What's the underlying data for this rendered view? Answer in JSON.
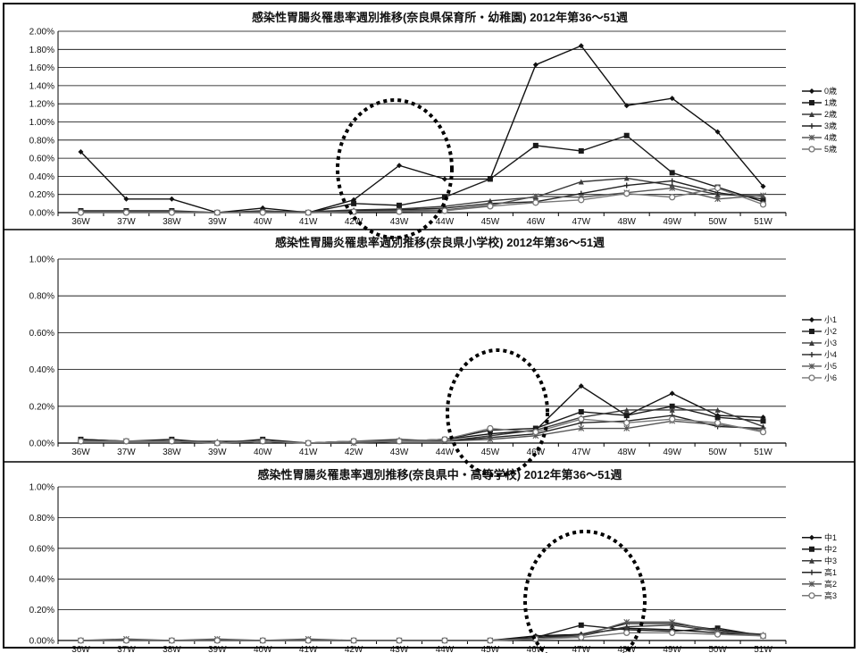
{
  "chart_data": [
    {
      "type": "line",
      "title": "感染性胃腸炎罹患率週別推移(奈良県保育所・幼稚園) 2012年第36～51週",
      "categories": [
        "36W",
        "37W",
        "38W",
        "39W",
        "40W",
        "41W",
        "42W",
        "43W",
        "44W",
        "45W",
        "46W",
        "47W",
        "48W",
        "49W",
        "50W",
        "51W"
      ],
      "yticks": [
        "0.00%",
        "0.20%",
        "0.40%",
        "0.60%",
        "0.80%",
        "1.00%",
        "1.20%",
        "1.40%",
        "1.60%",
        "1.80%",
        "2.00%"
      ],
      "ylim": [
        0,
        2.0
      ],
      "grid": true,
      "legend_position": "right",
      "series": [
        {
          "name": "0歳",
          "values": [
            0.67,
            0.15,
            0.15,
            0.0,
            0.05,
            0.0,
            0.14,
            0.52,
            0.37,
            0.37,
            1.63,
            1.84,
            1.18,
            1.26,
            0.89,
            0.29
          ]
        },
        {
          "name": "1歳",
          "values": [
            0.02,
            0.02,
            0.02,
            0.0,
            0.02,
            0.0,
            0.1,
            0.08,
            0.17,
            0.37,
            0.74,
            0.68,
            0.85,
            0.44,
            0.28,
            0.12
          ]
        },
        {
          "name": "2歳",
          "values": [
            0.01,
            0.01,
            0.01,
            0.0,
            0.01,
            0.01,
            0.03,
            0.04,
            0.07,
            0.13,
            0.17,
            0.34,
            0.38,
            0.3,
            0.2,
            0.18
          ]
        },
        {
          "name": "3歳",
          "values": [
            0.01,
            0.01,
            0.01,
            0.0,
            0.01,
            0.0,
            0.02,
            0.03,
            0.05,
            0.1,
            0.12,
            0.21,
            0.3,
            0.35,
            0.22,
            0.15
          ]
        },
        {
          "name": "4歳",
          "values": [
            0.01,
            0.01,
            0.01,
            0.0,
            0.01,
            0.0,
            0.01,
            0.02,
            0.03,
            0.08,
            0.18,
            0.17,
            0.22,
            0.27,
            0.15,
            0.19
          ]
        },
        {
          "name": "5歳",
          "values": [
            0.0,
            0.0,
            0.0,
            0.0,
            0.0,
            0.0,
            0.01,
            0.01,
            0.02,
            0.07,
            0.11,
            0.14,
            0.21,
            0.17,
            0.27,
            0.09
          ]
        }
      ]
    },
    {
      "type": "line",
      "title": "感染性胃腸炎罹患率週別推移(奈良県小学校) 2012年第36～51週",
      "categories": [
        "36W",
        "37W",
        "38W",
        "39W",
        "40W",
        "41W",
        "42W",
        "43W",
        "44W",
        "45W",
        "46W",
        "47W",
        "48W",
        "49W",
        "50W",
        "51W"
      ],
      "yticks": [
        "0.00%",
        "0.20%",
        "0.40%",
        "0.60%",
        "0.80%",
        "1.00%"
      ],
      "ylim": [
        0,
        1.0
      ],
      "grid": true,
      "legend_position": "right",
      "series": [
        {
          "name": "小1",
          "values": [
            0.02,
            0.01,
            0.01,
            0.0,
            0.01,
            0.0,
            0.01,
            0.01,
            0.02,
            0.05,
            0.07,
            0.31,
            0.15,
            0.27,
            0.15,
            0.14
          ]
        },
        {
          "name": "小2",
          "values": [
            0.02,
            0.01,
            0.02,
            0.0,
            0.02,
            0.0,
            0.01,
            0.01,
            0.02,
            0.07,
            0.08,
            0.17,
            0.15,
            0.2,
            0.14,
            0.12
          ]
        },
        {
          "name": "小3",
          "values": [
            0.01,
            0.01,
            0.01,
            0.01,
            0.01,
            0.0,
            0.01,
            0.02,
            0.01,
            0.04,
            0.07,
            0.14,
            0.18,
            0.18,
            0.18,
            0.09
          ]
        },
        {
          "name": "小4",
          "values": [
            0.01,
            0.01,
            0.01,
            0.0,
            0.01,
            0.0,
            0.0,
            0.01,
            0.01,
            0.03,
            0.05,
            0.11,
            0.12,
            0.15,
            0.09,
            0.08
          ]
        },
        {
          "name": "小5",
          "values": [
            0.01,
            0.01,
            0.01,
            0.0,
            0.01,
            0.0,
            0.0,
            0.01,
            0.01,
            0.02,
            0.04,
            0.08,
            0.08,
            0.12,
            0.1,
            0.07
          ]
        },
        {
          "name": "小6",
          "values": [
            0.01,
            0.01,
            0.01,
            0.0,
            0.01,
            0.0,
            0.01,
            0.01,
            0.02,
            0.08,
            0.06,
            0.13,
            0.11,
            0.13,
            0.11,
            0.06
          ]
        }
      ]
    },
    {
      "type": "line",
      "title": "感染性胃腸炎罹患率週別推移(奈良県中・高等学校) 2012年第36～51週",
      "categories": [
        "36W",
        "37W",
        "38W",
        "39W",
        "40W",
        "41W",
        "42W",
        "43W",
        "44W",
        "45W",
        "46W",
        "47W",
        "48W",
        "49W",
        "50W",
        "51W"
      ],
      "yticks": [
        "0.00%",
        "0.20%",
        "0.40%",
        "0.60%",
        "0.80%",
        "1.00%"
      ],
      "ylim": [
        0,
        1.0
      ],
      "grid": true,
      "legend_position": "right",
      "series": [
        {
          "name": "中1",
          "values": [
            0.0,
            0.0,
            0.0,
            0.0,
            0.0,
            0.0,
            0.0,
            0.0,
            0.0,
            0.0,
            0.03,
            0.04,
            0.08,
            0.07,
            0.05,
            0.03
          ]
        },
        {
          "name": "中2",
          "values": [
            0.0,
            0.0,
            0.0,
            0.0,
            0.0,
            0.0,
            0.0,
            0.0,
            0.0,
            0.0,
            0.02,
            0.1,
            0.07,
            0.06,
            0.08,
            0.03
          ]
        },
        {
          "name": "中3",
          "values": [
            0.0,
            0.0,
            0.0,
            0.0,
            0.0,
            0.0,
            0.0,
            0.0,
            0.0,
            0.0,
            0.02,
            0.03,
            0.09,
            0.1,
            0.06,
            0.04
          ]
        },
        {
          "name": "高1",
          "values": [
            0.0,
            0.0,
            0.0,
            0.0,
            0.0,
            0.0,
            0.0,
            0.0,
            0.0,
            0.0,
            0.02,
            0.04,
            0.11,
            0.11,
            0.07,
            0.03
          ]
        },
        {
          "name": "高2",
          "values": [
            0.0,
            0.01,
            0.0,
            0.01,
            0.0,
            0.01,
            0.0,
            0.0,
            0.0,
            0.0,
            0.01,
            0.03,
            0.12,
            0.12,
            0.06,
            0.03
          ]
        },
        {
          "name": "高3",
          "values": [
            0.0,
            0.0,
            0.0,
            0.0,
            0.0,
            0.0,
            0.0,
            0.0,
            0.0,
            0.0,
            0.01,
            0.02,
            0.05,
            0.05,
            0.04,
            0.03
          ]
        }
      ]
    }
  ],
  "colors": {
    "grid": "#000000",
    "series": [
      "#111111",
      "#1a1a1a",
      "#3a3a3a",
      "#222222",
      "#555555",
      "#777777"
    ],
    "circle": "#000000"
  }
}
